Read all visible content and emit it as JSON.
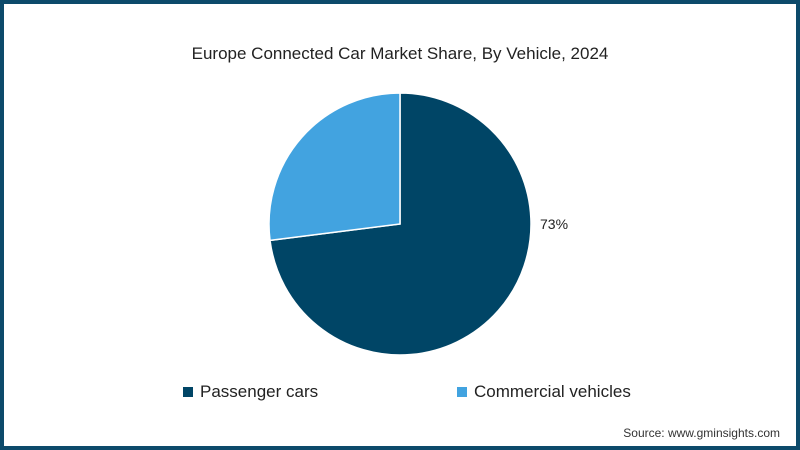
{
  "chart_data": {
    "type": "pie",
    "title": "Europe Connected Car Market Share, By Vehicle, 2024",
    "categories": [
      "Passenger cars",
      "Commercial vehicles"
    ],
    "values": [
      73,
      27
    ],
    "colors": [
      "#004566",
      "#42a3e0"
    ],
    "data_labels": [
      "73%",
      ""
    ],
    "legend_position": "bottom"
  },
  "labels": {
    "passenger": "73%"
  },
  "legend": [
    {
      "label": "Passenger cars",
      "color": "#004566"
    },
    {
      "label": "Commercial vehicles",
      "color": "#42a3e0"
    }
  ],
  "source": "Source: www.gminsights.com",
  "border_color": "#0d4a6b"
}
